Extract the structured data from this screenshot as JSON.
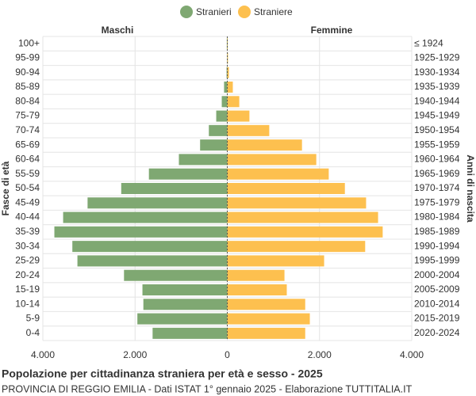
{
  "chart_data": {
    "type": "pyramid",
    "title": "Popolazione per cittadinanza straniera per età e sesso - 2025",
    "subtitle": "PROVINCIA DI REGGIO EMILIA - Dati ISTAT 1° gennaio 2025 - Elaborazione TUTTITALIA.IT",
    "left_label": "Maschi",
    "right_label": "Femmine",
    "y_axis_title": "Fasce di età",
    "y2_axis_title": "Anni di nascita",
    "categories": [
      "100+",
      "95-99",
      "90-94",
      "85-89",
      "80-84",
      "75-79",
      "70-74",
      "65-69",
      "60-64",
      "55-59",
      "50-54",
      "45-49",
      "40-44",
      "35-39",
      "30-34",
      "25-29",
      "20-24",
      "15-19",
      "10-14",
      "5-9",
      "0-4"
    ],
    "birth_years": [
      "≤ 1924",
      "1925-1929",
      "1930-1934",
      "1935-1939",
      "1940-1944",
      "1945-1949",
      "1950-1954",
      "1955-1959",
      "1960-1964",
      "1965-1969",
      "1970-1974",
      "1975-1979",
      "1980-1984",
      "1985-1989",
      "1990-1994",
      "1995-1999",
      "2000-2004",
      "2005-2009",
      "2010-2014",
      "2015-2019",
      "2020-2024"
    ],
    "series": [
      {
        "name": "Stranieri",
        "color": "#7fa872",
        "side": "left",
        "values": [
          10,
          5,
          15,
          70,
          120,
          240,
          400,
          590,
          1050,
          1700,
          2300,
          3030,
          3560,
          3750,
          3360,
          3250,
          2240,
          1840,
          1820,
          1950,
          1620
        ]
      },
      {
        "name": "Straniere",
        "color": "#fdc04f",
        "side": "right",
        "values": [
          10,
          15,
          35,
          120,
          260,
          480,
          910,
          1620,
          1930,
          2200,
          2550,
          3010,
          3270,
          3370,
          2990,
          2100,
          1240,
          1290,
          1690,
          1790,
          1690
        ]
      }
    ],
    "xlim": [
      -4000,
      4000
    ],
    "xticks": [
      {
        "value": -4000,
        "label": "4.000"
      },
      {
        "value": -2000,
        "label": "2.000"
      },
      0,
      {
        "value": 2000,
        "label": "2.000"
      },
      {
        "value": 4000,
        "label": "4.000"
      }
    ],
    "grid": true
  }
}
